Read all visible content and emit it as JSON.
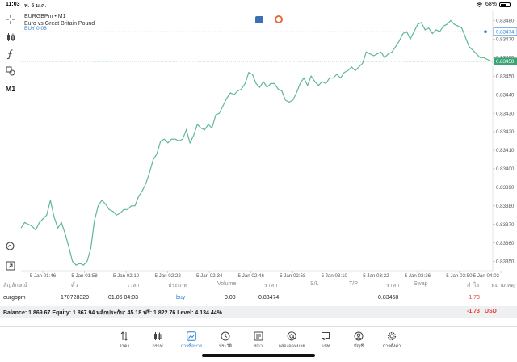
{
  "status_bar": {
    "time": "11:03",
    "date": "พ. 5 ม.ค.",
    "battery": "68%",
    "battery_fraction": 0.68
  },
  "toolbar": {
    "period_label": "M1"
  },
  "symbol": {
    "line1": "EURGBPm • M1",
    "line2": "Euro vs Great Britain Pound"
  },
  "buy_line_label": "BUY 0.08",
  "colors": {
    "line": "#5fb896",
    "buy_line": "#aab1b8",
    "price_label": "#2f9a6a",
    "accent": "#2f7fd3",
    "negative": "#e53935"
  },
  "chart_data": {
    "type": "line",
    "ylim": [
      0.83345,
      0.83485
    ],
    "yticks": [
      "0.83480",
      "0.83470",
      "0.83460",
      "0.83450",
      "0.83440",
      "0.83430",
      "0.83420",
      "0.83410",
      "0.83400",
      "0.83390",
      "0.83380",
      "0.83370",
      "0.83360",
      "0.83350"
    ],
    "xticks": [
      "5 Jan 01:46",
      "5 Jan 01:58",
      "5 Jan 02:10",
      "5 Jan 02:22",
      "5 Jan 02:34",
      "5 Jan 02:46",
      "5 Jan 02:58",
      "5 Jan 03:10",
      "5 Jan 03:22",
      "5 Jan 03:36",
      "5 Jan 03:50",
      "5 Jan 04:03"
    ],
    "buy_price": 0.83474,
    "buy_price_label": "0.83474",
    "current_price": 0.83458,
    "current_price_label": "0.83458",
    "values": [
      0.83368,
      0.83371,
      0.8337,
      0.83369,
      0.83367,
      0.83371,
      0.83373,
      0.83375,
      0.83383,
      0.83374,
      0.83368,
      0.83371,
      0.83365,
      0.83358,
      0.8335,
      0.83348,
      0.83349,
      0.83348,
      0.8335,
      0.83357,
      0.83372,
      0.8338,
      0.83383,
      0.83381,
      0.83378,
      0.83377,
      0.83375,
      0.83376,
      0.83378,
      0.83378,
      0.8338,
      0.8338,
      0.83385,
      0.83388,
      0.83392,
      0.83398,
      0.83405,
      0.83408,
      0.83415,
      0.83416,
      0.83414,
      0.83416,
      0.83416,
      0.83415,
      0.83416,
      0.83421,
      0.83414,
      0.83418,
      0.83424,
      0.83422,
      0.83421,
      0.83424,
      0.83422,
      0.83429,
      0.8343,
      0.83434,
      0.83438,
      0.83441,
      0.8344,
      0.83442,
      0.83443,
      0.83446,
      0.83452,
      0.83451,
      0.83446,
      0.83444,
      0.83447,
      0.83444,
      0.83446,
      0.83446,
      0.83443,
      0.83442,
      0.83437,
      0.83436,
      0.83437,
      0.83441,
      0.83446,
      0.83449,
      0.83445,
      0.8345,
      0.83447,
      0.83445,
      0.83447,
      0.83446,
      0.83449,
      0.83449,
      0.83451,
      0.83449,
      0.83452,
      0.83453,
      0.83455,
      0.83453,
      0.83455,
      0.83457,
      0.83463,
      0.83462,
      0.83461,
      0.83462,
      0.83463,
      0.8346,
      0.83462,
      0.83463,
      0.83466,
      0.83469,
      0.83473,
      0.83474,
      0.8347,
      0.83474,
      0.83478,
      0.83479,
      0.83475,
      0.83476,
      0.83473,
      0.83475,
      0.83474,
      0.83477,
      0.83478,
      0.8348,
      0.83478,
      0.83477,
      0.83476,
      0.83471,
      0.83466,
      0.83464,
      0.83462,
      0.8346,
      0.8346,
      0.83459,
      0.83458
    ]
  },
  "positions": {
    "headers": [
      "สัญลักษณ์",
      "ตั๋ว",
      "เวลา",
      "ประเภท",
      "Volume",
      "ราคา",
      "S/L",
      "T/P",
      "ราคา",
      "Swap",
      "กำไร",
      "หมายเหตุ"
    ],
    "row": {
      "symbol": "eurgbpm",
      "ticket": "170728320",
      "time": "01.05 04:03",
      "type": "buy",
      "volume": "0.08",
      "open_price": "0.83474",
      "price": "0.83458",
      "profit": "-1.73"
    },
    "balance_text": "Balance: 1 869.67 Equity: 1 867.94 หลักประกัน: 45.18 ฟรี: 1 822.76 Level: 4 134.44%",
    "balance_profit": "-1.73",
    "currency": "USD"
  },
  "tabs": [
    {
      "label": "ราคา",
      "icon": "arrows-icon"
    },
    {
      "label": "กราฟ",
      "icon": "candles-icon"
    },
    {
      "label": "การซื้อขาย",
      "icon": "trade-icon",
      "active": true
    },
    {
      "label": "ประวัติ",
      "icon": "history-icon"
    },
    {
      "label": "ข่าว",
      "icon": "news-icon"
    },
    {
      "label": "กล่องจดหมาย",
      "icon": "mail-icon"
    },
    {
      "label": "แชท",
      "icon": "chat-icon"
    },
    {
      "label": "บัญชี",
      "icon": "account-icon"
    },
    {
      "label": "การตั้งค่า",
      "icon": "settings-icon"
    }
  ]
}
